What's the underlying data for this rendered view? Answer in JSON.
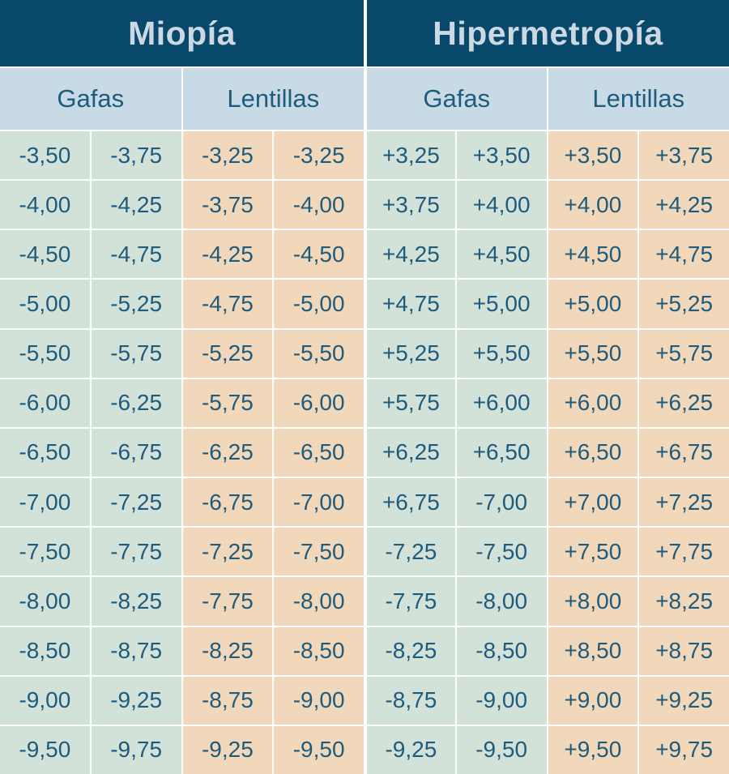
{
  "colors": {
    "navy": "#07486b",
    "header-text": "#ccd9e3",
    "lightblue": "#c8dae6",
    "green": "#d3e2d9",
    "peach": "#f2d8ba",
    "text": "#1e5b7d",
    "grid-line": "#ffffff"
  },
  "chart_data": {
    "type": "table",
    "sections": [
      {
        "title": "Miopía",
        "subheaders": [
          "Gafas",
          "Lentillas"
        ]
      },
      {
        "title": "Hipermetropía",
        "subheaders": [
          "Gafas",
          "Lentillas"
        ]
      }
    ],
    "column_groups": [
      "Miopía Gafas",
      "Miopía Lentillas",
      "Hipermetropía Gafas",
      "Hipermetropía Lentillas"
    ],
    "rows": [
      [
        "-3,50",
        "-3,75",
        "-3,25",
        "-3,25",
        "+3,25",
        "+3,50",
        "+3,50",
        "+3,75"
      ],
      [
        "-4,00",
        "-4,25",
        "-3,75",
        "-4,00",
        "+3,75",
        "+4,00",
        "+4,00",
        "+4,25"
      ],
      [
        "-4,50",
        "-4,75",
        "-4,25",
        "-4,50",
        "+4,25",
        "+4,50",
        "+4,50",
        "+4,75"
      ],
      [
        "-5,00",
        "-5,25",
        "-4,75",
        "-5,00",
        "+4,75",
        "+5,00",
        "+5,00",
        "+5,25"
      ],
      [
        "-5,50",
        "-5,75",
        "-5,25",
        "-5,50",
        "+5,25",
        "+5,50",
        "+5,50",
        "+5,75"
      ],
      [
        "-6,00",
        "-6,25",
        "-5,75",
        "-6,00",
        "+5,75",
        "+6,00",
        "+6,00",
        "+6,25"
      ],
      [
        "-6,50",
        "-6,75",
        "-6,25",
        "-6,50",
        "+6,25",
        "+6,50",
        "+6,50",
        "+6,75"
      ],
      [
        "-7,00",
        "-7,25",
        "-6,75",
        "-7,00",
        "+6,75",
        "-7,00",
        "+7,00",
        "+7,25"
      ],
      [
        "-7,50",
        "-7,75",
        "-7,25",
        "-7,50",
        "-7,25",
        "-7,50",
        "+7,50",
        "+7,75"
      ],
      [
        "-8,00",
        "-8,25",
        "-7,75",
        "-8,00",
        "-7,75",
        "-8,00",
        "+8,00",
        "+8,25"
      ],
      [
        "-8,50",
        "-8,75",
        "-8,25",
        "-8,50",
        "-8,25",
        "-8,50",
        "+8,50",
        "+8,75"
      ],
      [
        "-9,00",
        "-9,25",
        "-8,75",
        "-9,00",
        "-8,75",
        "-9,00",
        "+9,00",
        "+9,25"
      ],
      [
        "-9,50",
        "-9,75",
        "-9,25",
        "-9,50",
        "-9,25",
        "-9,50",
        "+9,50",
        "+9,75"
      ]
    ]
  }
}
